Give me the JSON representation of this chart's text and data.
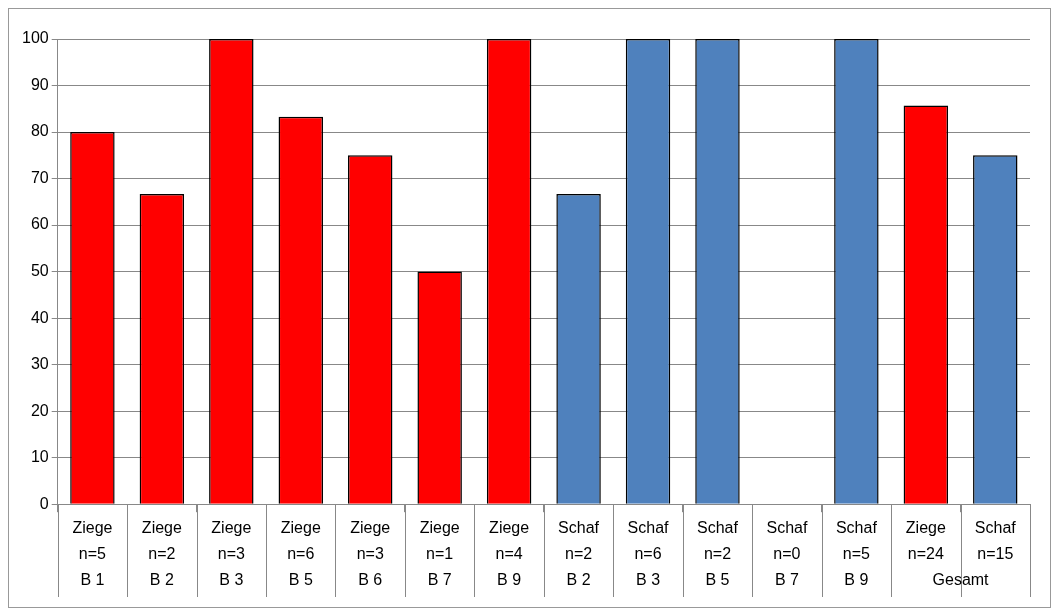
{
  "chart_data": {
    "type": "bar",
    "categories": [
      "Ziege\nn=5\nB 1",
      "Ziege\nn=2\nB 2",
      "Ziege\nn=3\nB 3",
      "Ziege\nn=6\nB 5",
      "Ziege\nn=3\nB 6",
      "Ziege\nn=1\nB 7",
      "Ziege\nn=4\nB 9",
      "Schaf\nn=2\nB 2",
      "Schaf\nn=6\nB 3",
      "Schaf\nn=2\nB 5",
      "Schaf\nn=0\nB 7",
      "Schaf\nn=5\nB 9",
      "Ziege\nn=24",
      "Schaf\nn=15"
    ],
    "values": [
      80,
      66.7,
      100,
      83.3,
      75,
      50,
      100,
      66.7,
      100,
      100,
      null,
      100,
      85.7,
      75
    ],
    "colors": [
      "#ff0000",
      "#ff0000",
      "#ff0000",
      "#ff0000",
      "#ff0000",
      "#ff0000",
      "#ff0000",
      "#4f81bd",
      "#4f81bd",
      "#4f81bd",
      "#4f81bd",
      "#4f81bd",
      "#ff0000",
      "#4f81bd"
    ],
    "ylim": [
      0,
      100
    ],
    "yticks": [
      0,
      10,
      20,
      30,
      40,
      50,
      60,
      70,
      80,
      90,
      100
    ],
    "grid": "y",
    "legend": false,
    "annotations": [
      "Gesamt"
    ]
  }
}
